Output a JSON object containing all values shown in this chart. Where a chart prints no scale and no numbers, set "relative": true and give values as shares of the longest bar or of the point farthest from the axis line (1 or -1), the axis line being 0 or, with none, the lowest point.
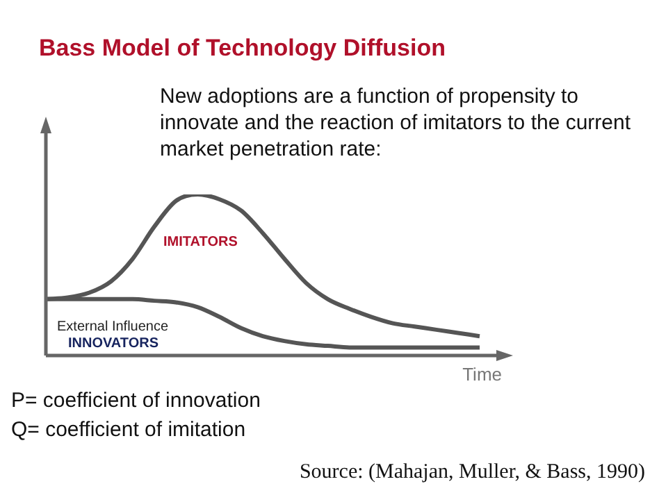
{
  "chart_data": {
    "type": "line",
    "title": "Bass Model of Technology Diffusion",
    "subtitle": "New adoptions are a function of propensity to innovate and the reaction of imitators to the current market penetration rate:",
    "xlabel": "Time",
    "relative": true,
    "marker": "none",
    "legend": false,
    "categories": [
      null,
      null,
      null,
      null,
      null,
      null,
      null,
      null,
      null,
      null,
      null,
      null,
      null,
      null,
      null,
      null,
      null,
      null,
      null,
      null,
      null
    ],
    "series": [
      {
        "name": "IMITATORS",
        "color": "#555555",
        "values": [
          0.35,
          0.36,
          0.39,
          0.46,
          0.6,
          0.8,
          0.96,
          1,
          0.97,
          0.9,
          0.76,
          0.6,
          0.45,
          0.35,
          0.29,
          0.24,
          0.2,
          0.18,
          0.16,
          0.14,
          0.12
        ]
      },
      {
        "name": "INNOVATORS",
        "color": "#555555",
        "values": [
          0.35,
          0.35,
          0.35,
          0.35,
          0.35,
          0.34,
          0.33,
          0.3,
          0.24,
          0.17,
          0.12,
          0.09,
          0.07,
          0.06,
          0.05,
          0.05,
          0.05,
          0.05,
          0.05,
          0.05,
          0.05
        ]
      }
    ],
    "annotations": [
      "External Influence",
      "P= coefficient of innovation",
      "Q= coefficient of imitation",
      "Source: (Mahajan, Muller, & Bass, 1990)"
    ]
  }
}
